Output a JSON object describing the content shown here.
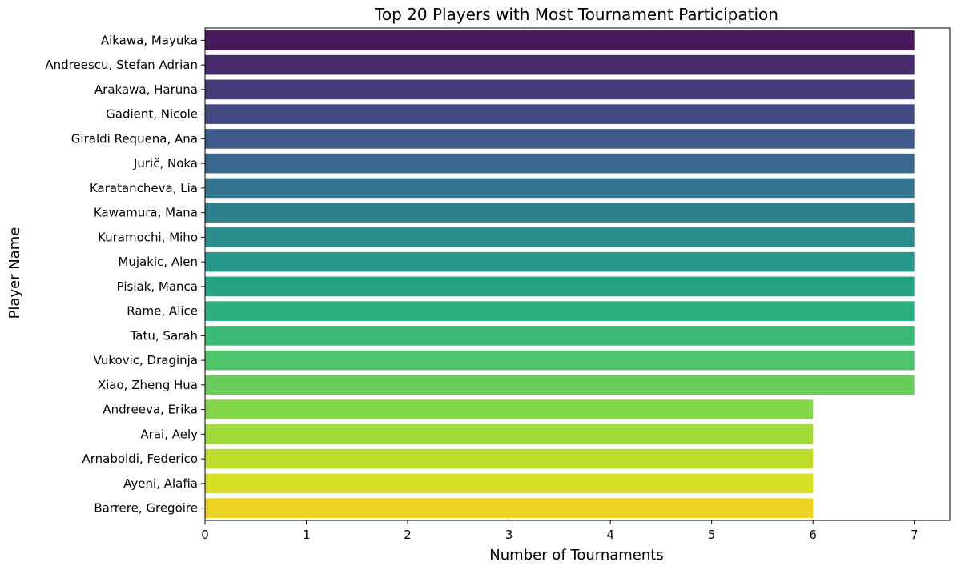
{
  "chart_data": {
    "type": "bar",
    "orientation": "horizontal",
    "title": "Top 20 Players with Most Tournament Participation",
    "xlabel": "Number of Tournaments",
    "ylabel": "Player Name",
    "xlim": [
      0,
      7.35
    ],
    "xticks": [
      "0",
      "1",
      "2",
      "3",
      "4",
      "5",
      "6",
      "7"
    ],
    "grid": false,
    "legend": "none",
    "palette": "viridis",
    "categories": [
      "Aikawa, Mayuka",
      "Andreescu, Stefan Adrian",
      "Arakawa, Haruna",
      "Gadient, Nicole",
      "Giraldi Requena, Ana",
      "Jurič, Noka",
      "Karatancheva, Lia",
      "Kawamura, Mana",
      "Kuramochi, Miho",
      "Mujakic, Alen",
      "Pislak, Manca",
      "Rame, Alice",
      "Tatu, Sarah",
      "Vukovic, Draginja",
      "Xiao, Zheng Hua",
      "Andreeva, Erika",
      "Arai, Aely",
      "Arnaboldi, Federico",
      "Ayeni, Alafia",
      "Barrere, Gregoire"
    ],
    "values": [
      7,
      7,
      7,
      7,
      7,
      7,
      7,
      7,
      7,
      7,
      7,
      7,
      7,
      7,
      7,
      6,
      6,
      6,
      6,
      6
    ],
    "colors": [
      "#481a5b",
      "#482b6b",
      "#463a79",
      "#434a84",
      "#3e598a",
      "#3a678d",
      "#33748e",
      "#2e808e",
      "#2a8d8c",
      "#26998a",
      "#25a485",
      "#2bb07e",
      "#3bbb76",
      "#4fc56b",
      "#69cd5d",
      "#85d54a",
      "#a0db3a",
      "#bcdd2c",
      "#d8e026",
      "#ecd321"
    ]
  }
}
